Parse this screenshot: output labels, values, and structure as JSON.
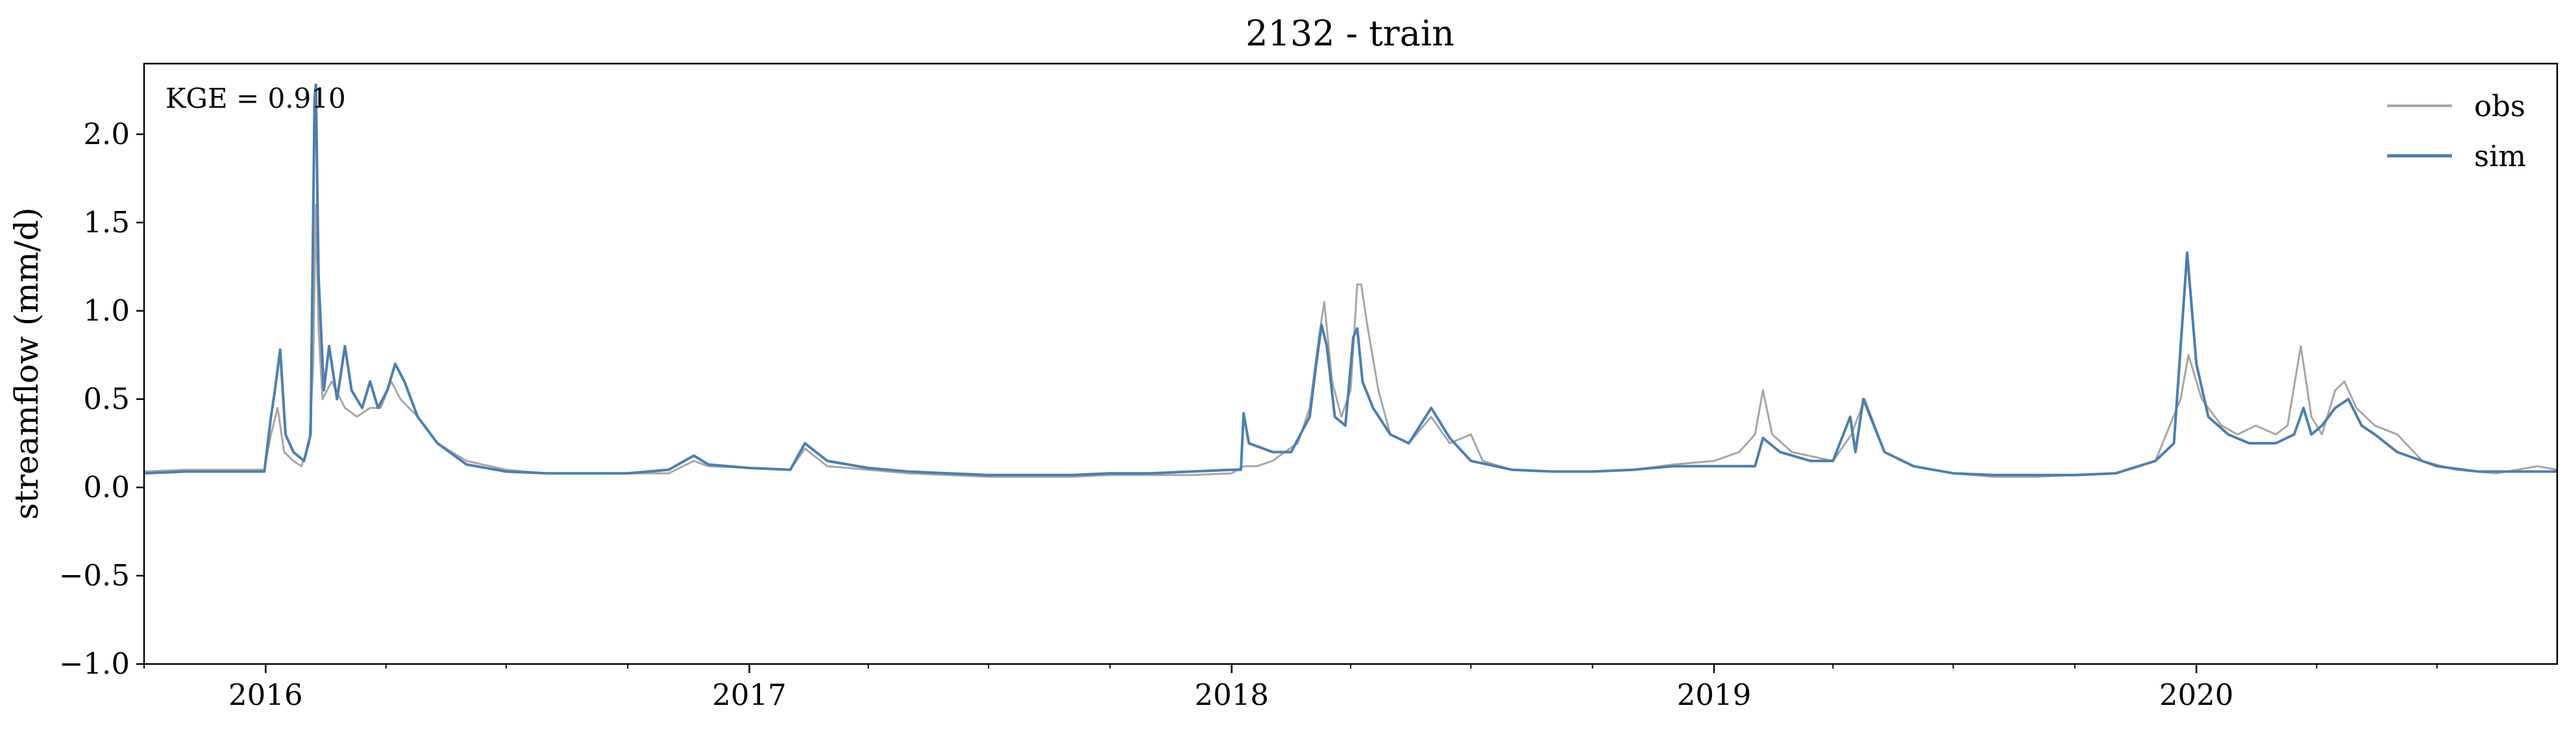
{
  "chart_data": {
    "type": "line",
    "title": "2132 - train",
    "xlabel": "",
    "ylabel": "streamflow (mm/d)",
    "annotation": "KGE = 0.910",
    "ylim": [
      -1.0,
      2.4
    ],
    "yticks": [
      -1.0,
      -0.5,
      0.0,
      0.5,
      1.0,
      1.5,
      2.0
    ],
    "ytick_labels": [
      "−1.0",
      "−0.5",
      "0.0",
      "0.5",
      "1.0",
      "1.5",
      "2.0"
    ],
    "xlim": [
      "2015-10-01",
      "2020-09-30"
    ],
    "xticks": [
      "2016-01-01",
      "2017-01-01",
      "2018-01-01",
      "2019-01-01",
      "2020-01-01"
    ],
    "xtick_labels": [
      "2016",
      "2017",
      "2018",
      "2019",
      "2020"
    ],
    "grid": false,
    "legend_position": "top-right",
    "series": [
      {
        "name": "obs",
        "color": "#a6a6a6",
        "points": [
          [
            "2015-10-01",
            0.09
          ],
          [
            "2015-11-01",
            0.1
          ],
          [
            "2015-12-01",
            0.1
          ],
          [
            "2015-12-31",
            0.1
          ],
          [
            "2016-01-05",
            0.3
          ],
          [
            "2016-01-10",
            0.45
          ],
          [
            "2016-01-15",
            0.2
          ],
          [
            "2016-01-22",
            0.15
          ],
          [
            "2016-01-28",
            0.12
          ],
          [
            "2016-02-03",
            0.25
          ],
          [
            "2016-02-06",
            0.7
          ],
          [
            "2016-02-08",
            1.6
          ],
          [
            "2016-02-10",
            0.9
          ],
          [
            "2016-02-13",
            0.5
          ],
          [
            "2016-02-20",
            0.6
          ],
          [
            "2016-03-01",
            0.45
          ],
          [
            "2016-03-10",
            0.4
          ],
          [
            "2016-03-20",
            0.45
          ],
          [
            "2016-03-28",
            0.45
          ],
          [
            "2016-04-05",
            0.6
          ],
          [
            "2016-04-12",
            0.5
          ],
          [
            "2016-04-25",
            0.4
          ],
          [
            "2016-05-10",
            0.25
          ],
          [
            "2016-06-01",
            0.15
          ],
          [
            "2016-07-01",
            0.1
          ],
          [
            "2016-08-01",
            0.08
          ],
          [
            "2016-09-01",
            0.08
          ],
          [
            "2016-10-01",
            0.08
          ],
          [
            "2016-11-01",
            0.08
          ],
          [
            "2016-11-20",
            0.15
          ],
          [
            "2016-12-01",
            0.12
          ],
          [
            "2017-01-01",
            0.11
          ],
          [
            "2017-02-01",
            0.1
          ],
          [
            "2017-02-12",
            0.22
          ],
          [
            "2017-03-01",
            0.12
          ],
          [
            "2017-04-01",
            0.1
          ],
          [
            "2017-05-01",
            0.08
          ],
          [
            "2017-06-01",
            0.07
          ],
          [
            "2017-07-01",
            0.06
          ],
          [
            "2017-08-01",
            0.06
          ],
          [
            "2017-09-01",
            0.06
          ],
          [
            "2017-10-01",
            0.07
          ],
          [
            "2017-11-01",
            0.07
          ],
          [
            "2017-12-01",
            0.07
          ],
          [
            "2018-01-01",
            0.08
          ],
          [
            "2018-01-10",
            0.12
          ],
          [
            "2018-01-20",
            0.12
          ],
          [
            "2018-02-01",
            0.15
          ],
          [
            "2018-02-10",
            0.2
          ],
          [
            "2018-02-20",
            0.25
          ],
          [
            "2018-03-01",
            0.45
          ],
          [
            "2018-03-08",
            0.85
          ],
          [
            "2018-03-12",
            1.05
          ],
          [
            "2018-03-18",
            0.6
          ],
          [
            "2018-03-25",
            0.4
          ],
          [
            "2018-04-01",
            0.55
          ],
          [
            "2018-04-06",
            1.15
          ],
          [
            "2018-04-09",
            1.15
          ],
          [
            "2018-04-14",
            0.9
          ],
          [
            "2018-04-22",
            0.55
          ],
          [
            "2018-05-01",
            0.3
          ],
          [
            "2018-05-15",
            0.25
          ],
          [
            "2018-06-01",
            0.4
          ],
          [
            "2018-06-15",
            0.25
          ],
          [
            "2018-07-01",
            0.3
          ],
          [
            "2018-07-10",
            0.15
          ],
          [
            "2018-08-01",
            0.1
          ],
          [
            "2018-09-01",
            0.09
          ],
          [
            "2018-10-01",
            0.09
          ],
          [
            "2018-11-01",
            0.1
          ],
          [
            "2018-12-01",
            0.13
          ],
          [
            "2019-01-01",
            0.15
          ],
          [
            "2019-01-20",
            0.2
          ],
          [
            "2019-02-01",
            0.3
          ],
          [
            "2019-02-07",
            0.55
          ],
          [
            "2019-02-14",
            0.3
          ],
          [
            "2019-03-01",
            0.2
          ],
          [
            "2019-04-01",
            0.15
          ],
          [
            "2019-04-15",
            0.3
          ],
          [
            "2019-04-25",
            0.5
          ],
          [
            "2019-05-10",
            0.2
          ],
          [
            "2019-06-01",
            0.12
          ],
          [
            "2019-07-01",
            0.08
          ],
          [
            "2019-08-01",
            0.06
          ],
          [
            "2019-09-01",
            0.06
          ],
          [
            "2019-10-01",
            0.07
          ],
          [
            "2019-11-01",
            0.08
          ],
          [
            "2019-12-01",
            0.15
          ],
          [
            "2019-12-20",
            0.5
          ],
          [
            "2019-12-26",
            0.75
          ],
          [
            "2020-01-05",
            0.5
          ],
          [
            "2020-01-20",
            0.35
          ],
          [
            "2020-02-01",
            0.3
          ],
          [
            "2020-02-15",
            0.35
          ],
          [
            "2020-03-01",
            0.3
          ],
          [
            "2020-03-10",
            0.35
          ],
          [
            "2020-03-20",
            0.8
          ],
          [
            "2020-03-28",
            0.4
          ],
          [
            "2020-04-05",
            0.3
          ],
          [
            "2020-04-15",
            0.55
          ],
          [
            "2020-04-22",
            0.6
          ],
          [
            "2020-05-01",
            0.45
          ],
          [
            "2020-05-15",
            0.35
          ],
          [
            "2020-06-01",
            0.3
          ],
          [
            "2020-06-20",
            0.15
          ],
          [
            "2020-07-15",
            0.1
          ],
          [
            "2020-08-15",
            0.08
          ],
          [
            "2020-09-15",
            0.12
          ],
          [
            "2020-09-30",
            0.1
          ]
        ]
      },
      {
        "name": "sim",
        "color": "#4a7fb0",
        "points": [
          [
            "2015-10-01",
            0.08
          ],
          [
            "2015-11-01",
            0.09
          ],
          [
            "2015-12-01",
            0.09
          ],
          [
            "2015-12-31",
            0.09
          ],
          [
            "2016-01-05",
            0.4
          ],
          [
            "2016-01-08",
            0.55
          ],
          [
            "2016-01-12",
            0.78
          ],
          [
            "2016-01-16",
            0.3
          ],
          [
            "2016-01-22",
            0.2
          ],
          [
            "2016-01-30",
            0.15
          ],
          [
            "2016-02-04",
            0.3
          ],
          [
            "2016-02-07",
            2.2
          ],
          [
            "2016-02-08",
            2.28
          ],
          [
            "2016-02-10",
            1.2
          ],
          [
            "2016-02-14",
            0.55
          ],
          [
            "2016-02-18",
            0.8
          ],
          [
            "2016-02-24",
            0.5
          ],
          [
            "2016-03-01",
            0.8
          ],
          [
            "2016-03-06",
            0.55
          ],
          [
            "2016-03-14",
            0.45
          ],
          [
            "2016-03-20",
            0.6
          ],
          [
            "2016-03-26",
            0.45
          ],
          [
            "2016-04-02",
            0.55
          ],
          [
            "2016-04-08",
            0.7
          ],
          [
            "2016-04-15",
            0.6
          ],
          [
            "2016-04-25",
            0.4
          ],
          [
            "2016-05-10",
            0.25
          ],
          [
            "2016-06-01",
            0.13
          ],
          [
            "2016-07-01",
            0.09
          ],
          [
            "2016-08-01",
            0.08
          ],
          [
            "2016-09-01",
            0.08
          ],
          [
            "2016-10-01",
            0.08
          ],
          [
            "2016-11-01",
            0.1
          ],
          [
            "2016-11-20",
            0.18
          ],
          [
            "2016-12-01",
            0.13
          ],
          [
            "2017-01-01",
            0.11
          ],
          [
            "2017-02-01",
            0.1
          ],
          [
            "2017-02-12",
            0.25
          ],
          [
            "2017-03-01",
            0.15
          ],
          [
            "2017-04-01",
            0.11
          ],
          [
            "2017-05-01",
            0.09
          ],
          [
            "2017-06-01",
            0.08
          ],
          [
            "2017-07-01",
            0.07
          ],
          [
            "2017-08-01",
            0.07
          ],
          [
            "2017-09-01",
            0.07
          ],
          [
            "2017-10-01",
            0.08
          ],
          [
            "2017-11-01",
            0.08
          ],
          [
            "2017-12-01",
            0.09
          ],
          [
            "2018-01-01",
            0.1
          ],
          [
            "2018-01-08",
            0.1
          ],
          [
            "2018-01-10",
            0.42
          ],
          [
            "2018-01-14",
            0.25
          ],
          [
            "2018-02-01",
            0.2
          ],
          [
            "2018-02-15",
            0.2
          ],
          [
            "2018-03-01",
            0.4
          ],
          [
            "2018-03-06",
            0.7
          ],
          [
            "2018-03-10",
            0.92
          ],
          [
            "2018-03-14",
            0.8
          ],
          [
            "2018-03-20",
            0.4
          ],
          [
            "2018-03-28",
            0.35
          ],
          [
            "2018-04-03",
            0.85
          ],
          [
            "2018-04-06",
            0.9
          ],
          [
            "2018-04-10",
            0.6
          ],
          [
            "2018-04-18",
            0.45
          ],
          [
            "2018-05-01",
            0.3
          ],
          [
            "2018-05-15",
            0.25
          ],
          [
            "2018-06-01",
            0.45
          ],
          [
            "2018-06-15",
            0.28
          ],
          [
            "2018-07-01",
            0.15
          ],
          [
            "2018-08-01",
            0.1
          ],
          [
            "2018-09-01",
            0.09
          ],
          [
            "2018-10-01",
            0.09
          ],
          [
            "2018-11-01",
            0.1
          ],
          [
            "2018-12-01",
            0.12
          ],
          [
            "2019-01-01",
            0.12
          ],
          [
            "2019-02-01",
            0.12
          ],
          [
            "2019-02-07",
            0.28
          ],
          [
            "2019-02-20",
            0.2
          ],
          [
            "2019-03-15",
            0.15
          ],
          [
            "2019-04-01",
            0.15
          ],
          [
            "2019-04-14",
            0.4
          ],
          [
            "2019-04-18",
            0.2
          ],
          [
            "2019-04-24",
            0.5
          ],
          [
            "2019-05-10",
            0.2
          ],
          [
            "2019-06-01",
            0.12
          ],
          [
            "2019-07-01",
            0.08
          ],
          [
            "2019-08-01",
            0.07
          ],
          [
            "2019-09-01",
            0.07
          ],
          [
            "2019-10-01",
            0.07
          ],
          [
            "2019-11-01",
            0.08
          ],
          [
            "2019-12-01",
            0.15
          ],
          [
            "2019-12-15",
            0.25
          ],
          [
            "2019-12-25",
            1.33
          ],
          [
            "2020-01-01",
            0.7
          ],
          [
            "2020-01-10",
            0.4
          ],
          [
            "2020-01-25",
            0.3
          ],
          [
            "2020-02-10",
            0.25
          ],
          [
            "2020-03-01",
            0.25
          ],
          [
            "2020-03-15",
            0.3
          ],
          [
            "2020-03-22",
            0.45
          ],
          [
            "2020-03-28",
            0.3
          ],
          [
            "2020-04-05",
            0.35
          ],
          [
            "2020-04-15",
            0.45
          ],
          [
            "2020-04-25",
            0.5
          ],
          [
            "2020-05-05",
            0.35
          ],
          [
            "2020-05-15",
            0.3
          ],
          [
            "2020-06-01",
            0.2
          ],
          [
            "2020-07-01",
            0.12
          ],
          [
            "2020-08-01",
            0.09
          ],
          [
            "2020-09-01",
            0.09
          ],
          [
            "2020-09-30",
            0.09
          ]
        ]
      }
    ]
  }
}
